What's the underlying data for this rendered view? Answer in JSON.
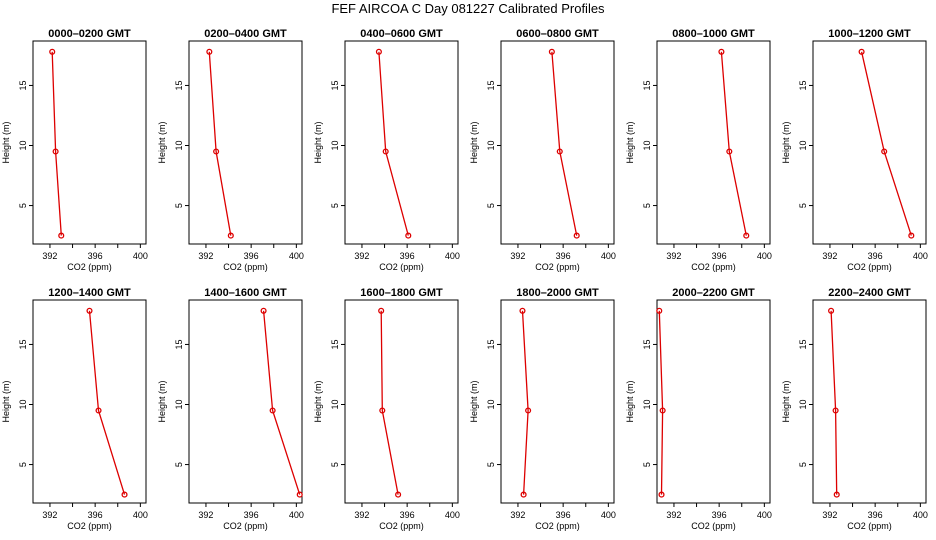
{
  "figure_title": "FEF AIRCOA C  Day 081227  Calibrated Profiles",
  "colors": {
    "series": "#dd0000",
    "axis": "#000000",
    "background": "#ffffff"
  },
  "chart_data": [
    {
      "type": "line",
      "title": "0000–0200 GMT",
      "xlabel": "CO2 (ppm)",
      "ylabel": "Height (m)",
      "xlim": [
        390.5,
        400.5
      ],
      "ylim": [
        1.8,
        18.7
      ],
      "xticks": [
        392,
        396,
        400
      ],
      "yticks": [
        5,
        10,
        15
      ],
      "x": [
        392.2,
        392.5,
        393.0
      ],
      "y": [
        17.8,
        9.5,
        2.5
      ]
    },
    {
      "type": "line",
      "title": "0200–0400 GMT",
      "xlabel": "CO2 (ppm)",
      "ylabel": "Height (m)",
      "xlim": [
        390.5,
        400.5
      ],
      "ylim": [
        1.8,
        18.7
      ],
      "xticks": [
        392,
        396,
        400
      ],
      "yticks": [
        5,
        10,
        15
      ],
      "x": [
        392.3,
        392.9,
        394.2
      ],
      "y": [
        17.8,
        9.5,
        2.5
      ]
    },
    {
      "type": "line",
      "title": "0400–0600 GMT",
      "xlabel": "CO2 (ppm)",
      "ylabel": "Height (m)",
      "xlim": [
        390.5,
        400.5
      ],
      "ylim": [
        1.8,
        18.7
      ],
      "xticks": [
        392,
        396,
        400
      ],
      "yticks": [
        5,
        10,
        15
      ],
      "x": [
        393.5,
        394.1,
        396.1
      ],
      "y": [
        17.8,
        9.5,
        2.5
      ]
    },
    {
      "type": "line",
      "title": "0600–0800 GMT",
      "xlabel": "CO2 (ppm)",
      "ylabel": "Height (m)",
      "xlim": [
        390.5,
        400.5
      ],
      "ylim": [
        1.8,
        18.7
      ],
      "xticks": [
        392,
        396,
        400
      ],
      "yticks": [
        5,
        10,
        15
      ],
      "x": [
        395.0,
        395.7,
        397.2
      ],
      "y": [
        17.8,
        9.5,
        2.5
      ]
    },
    {
      "type": "line",
      "title": "0800–1000 GMT",
      "xlabel": "CO2 (ppm)",
      "ylabel": "Height (m)",
      "xlim": [
        390.5,
        400.5
      ],
      "ylim": [
        1.8,
        18.7
      ],
      "xticks": [
        392,
        396,
        400
      ],
      "yticks": [
        5,
        10,
        15
      ],
      "x": [
        396.2,
        396.9,
        398.4
      ],
      "y": [
        17.8,
        9.5,
        2.5
      ]
    },
    {
      "type": "line",
      "title": "1000–1200 GMT",
      "xlabel": "CO2 (ppm)",
      "ylabel": "Height (m)",
      "xlim": [
        390.5,
        400.5
      ],
      "ylim": [
        1.8,
        18.7
      ],
      "xticks": [
        392,
        396,
        400
      ],
      "yticks": [
        5,
        10,
        15
      ],
      "x": [
        394.8,
        396.8,
        399.2
      ],
      "y": [
        17.8,
        9.5,
        2.5
      ]
    },
    {
      "type": "line",
      "title": "1200–1400 GMT",
      "xlabel": "CO2 (ppm)",
      "ylabel": "Height (m)",
      "xlim": [
        390.5,
        400.5
      ],
      "ylim": [
        1.8,
        18.7
      ],
      "xticks": [
        392,
        396,
        400
      ],
      "yticks": [
        5,
        10,
        15
      ],
      "x": [
        395.5,
        396.3,
        398.6
      ],
      "y": [
        17.8,
        9.5,
        2.5
      ]
    },
    {
      "type": "line",
      "title": "1400–1600 GMT",
      "xlabel": "CO2 (ppm)",
      "ylabel": "Height (m)",
      "xlim": [
        390.5,
        400.5
      ],
      "ylim": [
        1.8,
        18.7
      ],
      "xticks": [
        392,
        396,
        400
      ],
      "yticks": [
        5,
        10,
        15
      ],
      "x": [
        397.1,
        397.9,
        400.3
      ],
      "y": [
        17.8,
        9.5,
        2.5
      ]
    },
    {
      "type": "line",
      "title": "1600–1800 GMT",
      "xlabel": "CO2 (ppm)",
      "ylabel": "Height (m)",
      "xlim": [
        390.5,
        400.5
      ],
      "ylim": [
        1.8,
        18.7
      ],
      "xticks": [
        392,
        396,
        400
      ],
      "yticks": [
        5,
        10,
        15
      ],
      "x": [
        393.7,
        393.8,
        395.2
      ],
      "y": [
        17.8,
        9.5,
        2.5
      ]
    },
    {
      "type": "line",
      "title": "1800–2000 GMT",
      "xlabel": "CO2 (ppm)",
      "ylabel": "Height (m)",
      "xlim": [
        390.5,
        400.5
      ],
      "ylim": [
        1.8,
        18.7
      ],
      "xticks": [
        392,
        396,
        400
      ],
      "yticks": [
        5,
        10,
        15
      ],
      "x": [
        392.4,
        392.9,
        392.5
      ],
      "y": [
        17.8,
        9.5,
        2.5
      ]
    },
    {
      "type": "line",
      "title": "2000–2200 GMT",
      "xlabel": "CO2 (ppm)",
      "ylabel": "Height (m)",
      "xlim": [
        390.5,
        400.5
      ],
      "ylim": [
        1.8,
        18.7
      ],
      "xticks": [
        392,
        396,
        400
      ],
      "yticks": [
        5,
        10,
        15
      ],
      "x": [
        390.7,
        391.0,
        390.9
      ],
      "y": [
        17.8,
        9.5,
        2.5
      ]
    },
    {
      "type": "line",
      "title": "2200–2400 GMT",
      "xlabel": "CO2 (ppm)",
      "ylabel": "Height (m)",
      "xlim": [
        390.5,
        400.5
      ],
      "ylim": [
        1.8,
        18.7
      ],
      "xticks": [
        392,
        396,
        400
      ],
      "yticks": [
        5,
        10,
        15
      ],
      "x": [
        392.1,
        392.5,
        392.6
      ],
      "y": [
        17.8,
        9.5,
        2.5
      ]
    }
  ]
}
